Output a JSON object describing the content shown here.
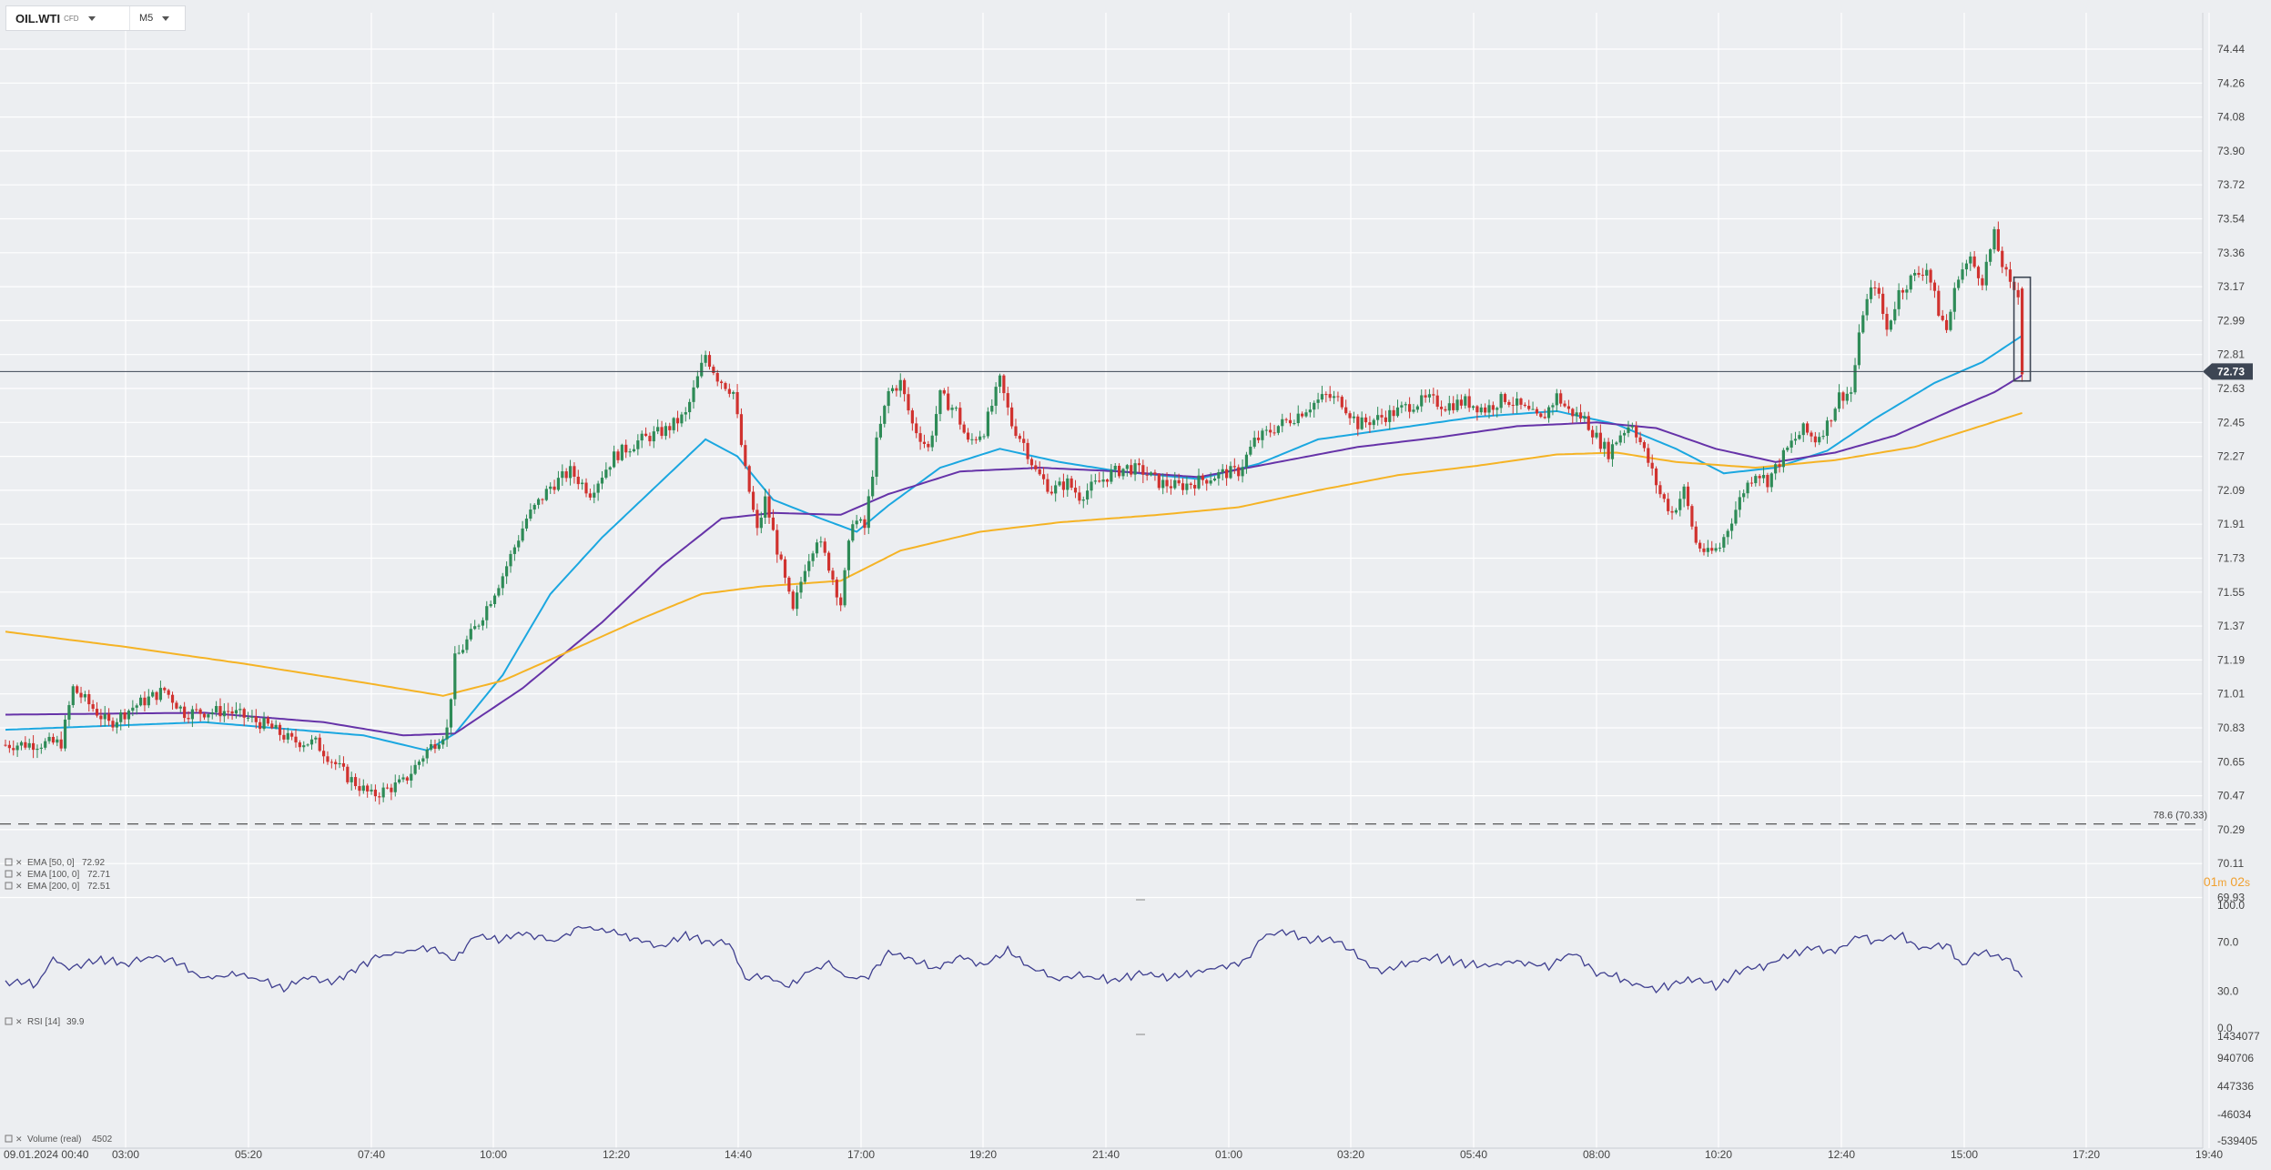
{
  "toolbar": {
    "symbol": "OIL.WTI",
    "instrument_class": "CFD",
    "timeframe": "M5",
    "symbol_dropdown_icon": "caret-down-icon",
    "timeframe_dropdown_icon": "caret-down-icon"
  },
  "colors": {
    "bull": "#2e8b57",
    "bear": "#d0322f",
    "ema50": "#1ba7e0",
    "ema100": "#6633a8",
    "ema200": "#f5b325",
    "rsi": "#3f3f8f",
    "price_tag_bg": "#3d4654",
    "countdown": "#f0a030"
  },
  "chart_data": {
    "type": "candlestick",
    "instrument": "OIL.WTI",
    "timeframe": "M5",
    "price_axis": {
      "ticks": [
        "74.44",
        "74.26",
        "74.08",
        "73.90",
        "73.72",
        "73.54",
        "73.36",
        "73.17",
        "72.99",
        "72.81",
        "72.63",
        "72.45",
        "72.27",
        "72.09",
        "71.91",
        "71.73",
        "71.55",
        "71.37",
        "71.19",
        "71.01",
        "70.83",
        "70.65",
        "70.47",
        "70.29",
        "70.11",
        "69.93"
      ],
      "range": [
        69.93,
        74.44
      ]
    },
    "time_axis": {
      "ticks": [
        "09.01.2024  00:40",
        "03:00",
        "05:20",
        "07:40",
        "10:00",
        "12:20",
        "14:40",
        "17:00",
        "19:20",
        "21:40",
        "01:00",
        "03:20",
        "05:40",
        "08:00",
        "10:20",
        "12:40",
        "15:00",
        "17:20",
        "19:40"
      ]
    },
    "current_price": "72.73",
    "countdown": {
      "minutes": "01",
      "m_label": "m",
      "seconds": "02",
      "s_label": "s"
    },
    "fib_level": {
      "label": "78.6 (70.33)",
      "value": 70.33
    },
    "price_path": [
      [
        0,
        70.75
      ],
      [
        14,
        70.76
      ],
      [
        17,
        71.05
      ],
      [
        26,
        70.86
      ],
      [
        32,
        70.95
      ],
      [
        40,
        71.04
      ],
      [
        45,
        70.92
      ],
      [
        56,
        70.93
      ],
      [
        66,
        70.85
      ],
      [
        72,
        70.77
      ],
      [
        78,
        70.76
      ],
      [
        86,
        70.58
      ],
      [
        92,
        70.48
      ],
      [
        100,
        70.55
      ],
      [
        106,
        70.72
      ],
      [
        111,
        70.83
      ],
      [
        113,
        71.2
      ],
      [
        119,
        71.4
      ],
      [
        125,
        71.65
      ],
      [
        131,
        71.95
      ],
      [
        137,
        72.12
      ],
      [
        142,
        72.2
      ],
      [
        147,
        72.09
      ],
      [
        153,
        72.28
      ],
      [
        159,
        72.36
      ],
      [
        166,
        72.42
      ],
      [
        171,
        72.5
      ],
      [
        176,
        72.82
      ],
      [
        179,
        72.7
      ],
      [
        183,
        72.62
      ],
      [
        186,
        72.2
      ],
      [
        189,
        71.88
      ],
      [
        191,
        72.05
      ],
      [
        195,
        71.7
      ],
      [
        198,
        71.45
      ],
      [
        201,
        71.7
      ],
      [
        204,
        71.85
      ],
      [
        207,
        71.7
      ],
      [
        210,
        71.5
      ],
      [
        213,
        71.95
      ],
      [
        216,
        71.9
      ],
      [
        219,
        72.35
      ],
      [
        222,
        72.62
      ],
      [
        225,
        72.67
      ],
      [
        228,
        72.45
      ],
      [
        232,
        72.32
      ],
      [
        235,
        72.6
      ],
      [
        239,
        72.52
      ],
      [
        242,
        72.35
      ],
      [
        246,
        72.42
      ],
      [
        250,
        72.68
      ],
      [
        253,
        72.45
      ],
      [
        256,
        72.35
      ],
      [
        259,
        72.2
      ],
      [
        263,
        72.1
      ],
      [
        267,
        72.14
      ],
      [
        270,
        72.07
      ],
      [
        274,
        72.13
      ],
      [
        278,
        72.19
      ],
      [
        282,
        72.22
      ],
      [
        286,
        72.2
      ],
      [
        290,
        72.14
      ],
      [
        295,
        72.12
      ],
      [
        300,
        72.15
      ],
      [
        306,
        72.19
      ],
      [
        310,
        72.2
      ],
      [
        314,
        72.36
      ],
      [
        319,
        72.43
      ],
      [
        324,
        72.49
      ],
      [
        328,
        72.55
      ],
      [
        332,
        72.6
      ],
      [
        336,
        72.57
      ],
      [
        340,
        72.45
      ],
      [
        345,
        72.48
      ],
      [
        350,
        72.52
      ],
      [
        354,
        72.56
      ],
      [
        358,
        72.58
      ],
      [
        362,
        72.55
      ],
      [
        367,
        72.57
      ],
      [
        372,
        72.53
      ],
      [
        377,
        72.59
      ],
      [
        381,
        72.54
      ],
      [
        386,
        72.47
      ],
      [
        390,
        72.6
      ],
      [
        393,
        72.52
      ],
      [
        397,
        72.48
      ],
      [
        400,
        72.38
      ],
      [
        403,
        72.3
      ],
      [
        406,
        72.4
      ],
      [
        409,
        72.46
      ],
      [
        413,
        72.25
      ],
      [
        416,
        72.08
      ],
      [
        419,
        71.98
      ],
      [
        422,
        72.1
      ],
      [
        425,
        71.82
      ],
      [
        428,
        71.76
      ],
      [
        431,
        71.8
      ],
      [
        434,
        71.95
      ],
      [
        437,
        72.1
      ],
      [
        440,
        72.2
      ],
      [
        443,
        72.15
      ],
      [
        446,
        72.25
      ],
      [
        449,
        72.35
      ],
      [
        452,
        72.42
      ],
      [
        455,
        72.37
      ],
      [
        458,
        72.45
      ],
      [
        461,
        72.6
      ],
      [
        464,
        72.62
      ],
      [
        467,
        73.05
      ],
      [
        470,
        73.2
      ],
      [
        473,
        72.95
      ],
      [
        476,
        73.15
      ],
      [
        479,
        73.22
      ],
      [
        483,
        73.28
      ],
      [
        486,
        73.05
      ],
      [
        488,
        72.95
      ],
      [
        491,
        73.25
      ],
      [
        494,
        73.32
      ],
      [
        497,
        73.22
      ],
      [
        500,
        73.45
      ],
      [
        502,
        73.3
      ],
      [
        504,
        73.18
      ],
      [
        506,
        73.15
      ],
      [
        507,
        72.73
      ]
    ],
    "series": [
      {
        "name": "EMA [50, 0]",
        "last_value": "72.92",
        "color": "#1ba7e0",
        "points": [
          [
            0,
            70.83
          ],
          [
            50,
            70.87
          ],
          [
            90,
            70.8
          ],
          [
            106,
            70.72
          ],
          [
            113,
            70.81
          ],
          [
            125,
            71.12
          ],
          [
            137,
            71.55
          ],
          [
            150,
            71.85
          ],
          [
            165,
            72.15
          ],
          [
            176,
            72.37
          ],
          [
            184,
            72.28
          ],
          [
            193,
            72.05
          ],
          [
            205,
            71.95
          ],
          [
            214,
            71.88
          ],
          [
            222,
            72.02
          ],
          [
            235,
            72.22
          ],
          [
            250,
            72.32
          ],
          [
            265,
            72.25
          ],
          [
            280,
            72.2
          ],
          [
            300,
            72.16
          ],
          [
            315,
            72.24
          ],
          [
            330,
            72.37
          ],
          [
            350,
            72.43
          ],
          [
            370,
            72.49
          ],
          [
            390,
            72.52
          ],
          [
            405,
            72.45
          ],
          [
            420,
            72.32
          ],
          [
            432,
            72.19
          ],
          [
            445,
            72.22
          ],
          [
            458,
            72.31
          ],
          [
            470,
            72.48
          ],
          [
            485,
            72.67
          ],
          [
            497,
            72.78
          ],
          [
            507,
            72.92
          ]
        ]
      },
      {
        "name": "EMA [100, 0]",
        "last_value": "72.71",
        "color": "#6633a8",
        "points": [
          [
            0,
            70.91
          ],
          [
            50,
            70.92
          ],
          [
            80,
            70.87
          ],
          [
            100,
            70.8
          ],
          [
            113,
            70.81
          ],
          [
            130,
            71.05
          ],
          [
            150,
            71.4
          ],
          [
            165,
            71.7
          ],
          [
            180,
            71.95
          ],
          [
            193,
            71.98
          ],
          [
            210,
            71.97
          ],
          [
            222,
            72.08
          ],
          [
            240,
            72.2
          ],
          [
            260,
            72.22
          ],
          [
            280,
            72.2
          ],
          [
            300,
            72.17
          ],
          [
            320,
            72.25
          ],
          [
            340,
            72.33
          ],
          [
            360,
            72.38
          ],
          [
            380,
            72.44
          ],
          [
            400,
            72.46
          ],
          [
            415,
            72.43
          ],
          [
            430,
            72.32
          ],
          [
            445,
            72.25
          ],
          [
            460,
            72.3
          ],
          [
            475,
            72.39
          ],
          [
            490,
            72.53
          ],
          [
            500,
            72.62
          ],
          [
            507,
            72.71
          ]
        ]
      },
      {
        "name": "EMA [200, 0]",
        "last_value": "72.51",
        "color": "#f5b325",
        "points": [
          [
            0,
            71.35
          ],
          [
            30,
            71.27
          ],
          [
            60,
            71.18
          ],
          [
            90,
            71.08
          ],
          [
            110,
            71.01
          ],
          [
            125,
            71.09
          ],
          [
            140,
            71.23
          ],
          [
            160,
            71.42
          ],
          [
            175,
            71.55
          ],
          [
            190,
            71.59
          ],
          [
            210,
            71.62
          ],
          [
            225,
            71.78
          ],
          [
            245,
            71.88
          ],
          [
            265,
            71.93
          ],
          [
            290,
            71.97
          ],
          [
            310,
            72.01
          ],
          [
            330,
            72.1
          ],
          [
            350,
            72.18
          ],
          [
            370,
            72.23
          ],
          [
            390,
            72.29
          ],
          [
            405,
            72.3
          ],
          [
            420,
            72.25
          ],
          [
            440,
            72.22
          ],
          [
            460,
            72.26
          ],
          [
            480,
            72.33
          ],
          [
            495,
            72.43
          ],
          [
            507,
            72.51
          ]
        ]
      }
    ],
    "rsi": {
      "label": "RSI [14]",
      "last_value": "39.9",
      "ticks": [
        "100.0",
        "70.0",
        "30.0",
        "0.0"
      ],
      "range": [
        0,
        100
      ],
      "points": [
        [
          0,
          37
        ],
        [
          8,
          35
        ],
        [
          12,
          57
        ],
        [
          16,
          48
        ],
        [
          22,
          55
        ],
        [
          30,
          52
        ],
        [
          38,
          58
        ],
        [
          45,
          50
        ],
        [
          50,
          40
        ],
        [
          58,
          43
        ],
        [
          65,
          38
        ],
        [
          70,
          30
        ],
        [
          76,
          42
        ],
        [
          82,
          36
        ],
        [
          88,
          48
        ],
        [
          94,
          58
        ],
        [
          100,
          62
        ],
        [
          108,
          65
        ],
        [
          113,
          55
        ],
        [
          118,
          75
        ],
        [
          124,
          70
        ],
        [
          130,
          78
        ],
        [
          138,
          70
        ],
        [
          144,
          82
        ],
        [
          152,
          78
        ],
        [
          158,
          73
        ],
        [
          165,
          65
        ],
        [
          171,
          75
        ],
        [
          176,
          70
        ],
        [
          182,
          68
        ],
        [
          186,
          40
        ],
        [
          192,
          42
        ],
        [
          197,
          32
        ],
        [
          202,
          46
        ],
        [
          207,
          52
        ],
        [
          212,
          40
        ],
        [
          217,
          42
        ],
        [
          222,
          62
        ],
        [
          228,
          56
        ],
        [
          233,
          48
        ],
        [
          240,
          58
        ],
        [
          246,
          51
        ],
        [
          252,
          62
        ],
        [
          258,
          48
        ],
        [
          264,
          40
        ],
        [
          270,
          42
        ],
        [
          278,
          38
        ],
        [
          286,
          44
        ],
        [
          292,
          40
        ],
        [
          300,
          45
        ],
        [
          306,
          50
        ],
        [
          312,
          55
        ],
        [
          316,
          75
        ],
        [
          322,
          78
        ],
        [
          328,
          70
        ],
        [
          334,
          72
        ],
        [
          340,
          58
        ],
        [
          345,
          45
        ],
        [
          352,
          52
        ],
        [
          358,
          58
        ],
        [
          366,
          52
        ],
        [
          372,
          50
        ],
        [
          380,
          55
        ],
        [
          388,
          48
        ],
        [
          394,
          62
        ],
        [
          400,
          45
        ],
        [
          404,
          42
        ],
        [
          410,
          36
        ],
        [
          415,
          30
        ],
        [
          420,
          36
        ],
        [
          426,
          40
        ],
        [
          430,
          32
        ],
        [
          436,
          46
        ],
        [
          442,
          50
        ],
        [
          448,
          58
        ],
        [
          454,
          65
        ],
        [
          460,
          62
        ],
        [
          466,
          75
        ],
        [
          470,
          70
        ],
        [
          476,
          75
        ],
        [
          482,
          65
        ],
        [
          488,
          68
        ],
        [
          492,
          50
        ],
        [
          496,
          62
        ],
        [
          500,
          58
        ],
        [
          504,
          55
        ],
        [
          507,
          40
        ]
      ]
    },
    "volume": {
      "label": "Volume  (real)",
      "last_value": "4502",
      "ticks": [
        "1434077",
        "940706",
        "447336",
        "-46034",
        "-539405"
      ]
    },
    "legend_placement": "bottom-left",
    "grid": true
  }
}
